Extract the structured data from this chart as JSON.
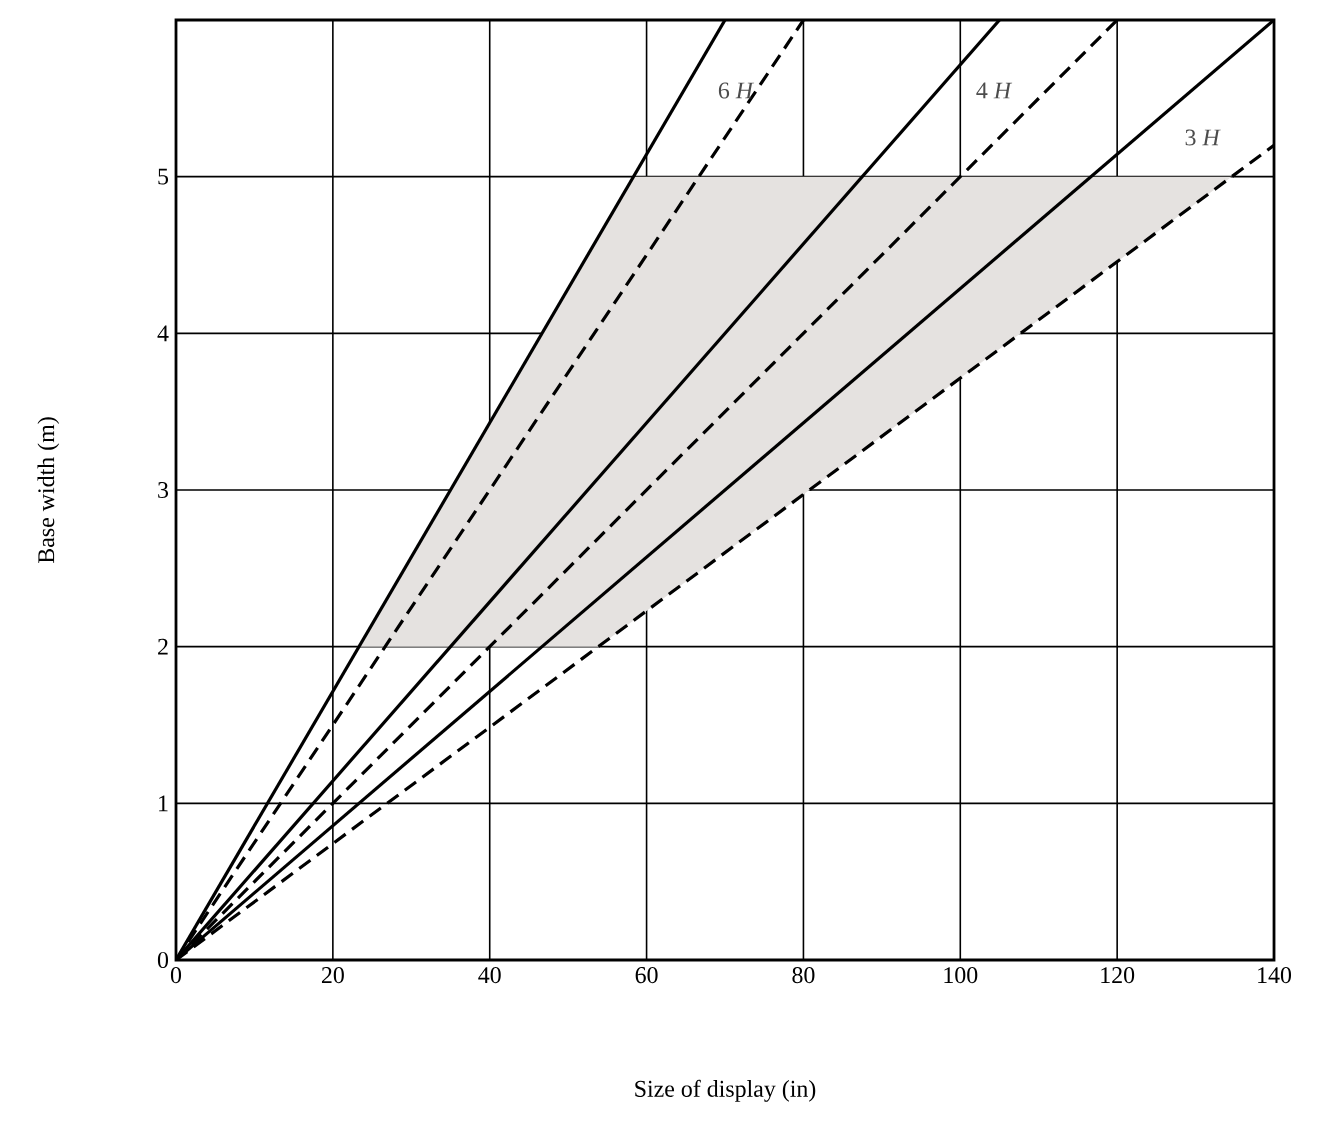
{
  "chart_data": {
    "type": "line",
    "xlabel": "Size of display (in)",
    "ylabel": "Base width (m)",
    "xlim": [
      0,
      140
    ],
    "ylim": [
      0,
      6
    ],
    "xticks": [
      0,
      20,
      40,
      60,
      80,
      100,
      120,
      140
    ],
    "yticks": [
      0,
      1,
      2,
      3,
      4,
      5
    ],
    "grid": true,
    "marker": "none",
    "series": [
      {
        "color": "#000000",
        "line_style": "solid",
        "x": [
          0,
          70
        ],
        "values": [
          0,
          6
        ]
      },
      {
        "color": "#000000",
        "line_style": "dashed",
        "x": [
          0,
          80
        ],
        "values": [
          0,
          6
        ]
      },
      {
        "color": "#000000",
        "line_style": "solid",
        "x": [
          0,
          105
        ],
        "values": [
          0,
          6
        ]
      },
      {
        "color": "#000000",
        "line_style": "dashed",
        "x": [
          0,
          120
        ],
        "values": [
          0,
          6
        ]
      },
      {
        "color": "#000000",
        "line_style": "solid",
        "x": [
          0,
          140
        ],
        "values": [
          0,
          6
        ]
      },
      {
        "color": "#000000",
        "line_style": "dashed",
        "x": [
          0,
          140
        ],
        "values": [
          0,
          5.2
        ]
      }
    ],
    "bands": [
      {
        "axis": "y",
        "from": 2,
        "to": 5,
        "color": "#e5e2e0"
      }
    ],
    "annotations": [
      "6 *H*",
      "4 *H*",
      "3 *H*"
    ]
  }
}
